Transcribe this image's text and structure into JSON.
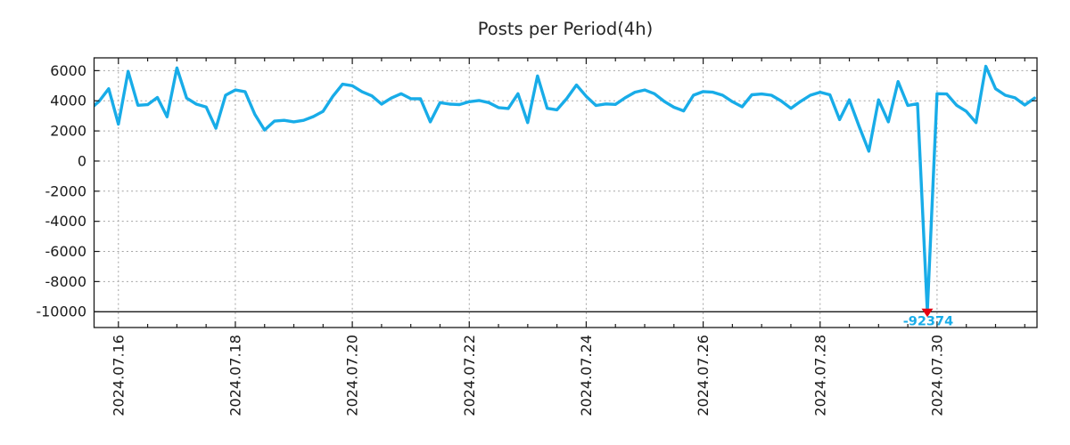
{
  "chart_data": {
    "type": "line",
    "title": "Posts per Period(4h)",
    "xlabel": "",
    "ylabel": "",
    "x_start": "2024.07.15 12:00",
    "x_step_hours": 4,
    "values": [
      3400,
      3950,
      4800,
      2450,
      5950,
      3700,
      3740,
      4220,
      2940,
      6180,
      4180,
      3780,
      3590,
      2180,
      4370,
      4720,
      4600,
      3100,
      2060,
      2650,
      2700,
      2600,
      2700,
      2950,
      3300,
      4300,
      5100,
      5000,
      4600,
      4330,
      3780,
      4180,
      4470,
      4140,
      4130,
      2600,
      3880,
      3780,
      3750,
      3940,
      4020,
      3880,
      3550,
      3490,
      4470,
      2550,
      5650,
      3500,
      3400,
      4150,
      5050,
      4300,
      3690,
      3790,
      3760,
      4200,
      4570,
      4720,
      4470,
      3960,
      3570,
      3330,
      4370,
      4610,
      4570,
      4370,
      3940,
      3600,
      4400,
      4450,
      4370,
      3990,
      3500,
      3960,
      4370,
      4570,
      4400,
      2750,
      4060,
      2300,
      650,
      4060,
      2600,
      5280,
      3690,
      3800,
      -92374,
      4470,
      4450,
      3700,
      3300,
      2550,
      6290,
      4800,
      4370,
      4200,
      3720,
      4180
    ],
    "x_tick_labels": [
      "2024.07.16",
      "2024.07.18",
      "2024.07.20",
      "2024.07.22",
      "2024.07.24",
      "2024.07.26",
      "2024.07.28",
      "2024.07.30"
    ],
    "x_tick_indices": [
      3,
      15,
      27,
      39,
      51,
      63,
      75,
      87
    ],
    "x_minor_tick_every_indices": 3,
    "y_ticks": [
      6000,
      4000,
      2000,
      0,
      -2000,
      -4000,
      -6000,
      -8000,
      -10000
    ],
    "y_tick_labels": [
      "6000",
      "4000",
      "2000",
      "0",
      "-2000",
      "-4000",
      "-6000",
      "-8000",
      "-10000"
    ],
    "ylim": [
      -11050,
      6850
    ],
    "clip_min": -10000,
    "grid": true,
    "legend_position": "none",
    "line_color": "#18ace8",
    "grid_color": "#a3a3a3",
    "axis_color": "#1a1a1a",
    "baseline": {
      "value": -10000,
      "style": "solid",
      "color": "#000000"
    },
    "annotation": {
      "index": 86,
      "value": -92374,
      "label": "-92374",
      "marker": "triangle-down",
      "marker_color": "#e60012",
      "label_color": "#18ace8"
    }
  }
}
